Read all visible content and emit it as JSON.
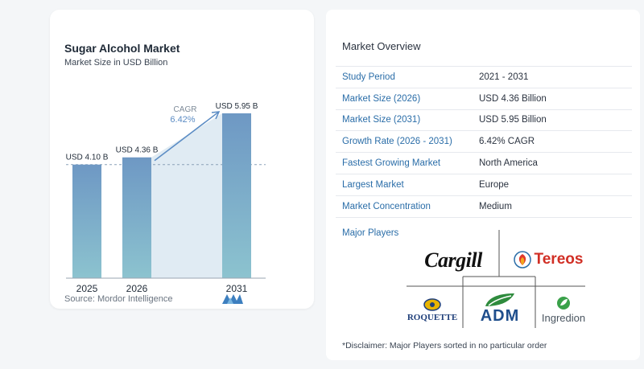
{
  "chart": {
    "title": "Sugar Alcohol Market",
    "subtitle": "Market Size in USD Billion",
    "source": "Source: Mordor Intelligence",
    "cagr_label": "CAGR",
    "cagr_value": "6.42%"
  },
  "chart_data": {
    "type": "bar",
    "categories": [
      "2025",
      "2026",
      "2031"
    ],
    "values": [
      4.1,
      4.36,
      5.95
    ],
    "data_labels": [
      "USD 4.10 B",
      "USD 4.36 B",
      "USD 5.95 B"
    ],
    "title": "Sugar Alcohol Market",
    "subtitle": "Market Size in USD Billion",
    "ylim": [
      0,
      6.5
    ],
    "grid": false,
    "annotation": "CAGR 6.42%"
  },
  "overview": {
    "title": "Market Overview",
    "rows": [
      {
        "key": "Study Period",
        "value": "2021 - 2031"
      },
      {
        "key": "Market Size (2026)",
        "value": "USD 4.36 Billion"
      },
      {
        "key": "Market Size (2031)",
        "value": "USD 5.95 Billion"
      },
      {
        "key": "Growth Rate (2026 - 2031)",
        "value": "6.42% CAGR"
      },
      {
        "key": "Fastest Growing Market",
        "value": "North America"
      },
      {
        "key": "Largest Market",
        "value": "Europe"
      },
      {
        "key": "Market Concentration",
        "value": "Medium"
      }
    ],
    "players_title": "Major Players",
    "players": [
      "Cargill",
      "Tereos",
      "ROQUETTE",
      "ADM",
      "Ingredion"
    ],
    "disclaimer": "*Disclaimer: Major Players sorted in no particular order"
  },
  "colors": {
    "bar_top": "#6e98c4",
    "bar_bottom": "#8cc3cf",
    "arrow": "#5b8cc4",
    "key_text": "#2a6da8",
    "adm_green": "#2e8b3d",
    "adm_blue": "#1f4e8c"
  }
}
